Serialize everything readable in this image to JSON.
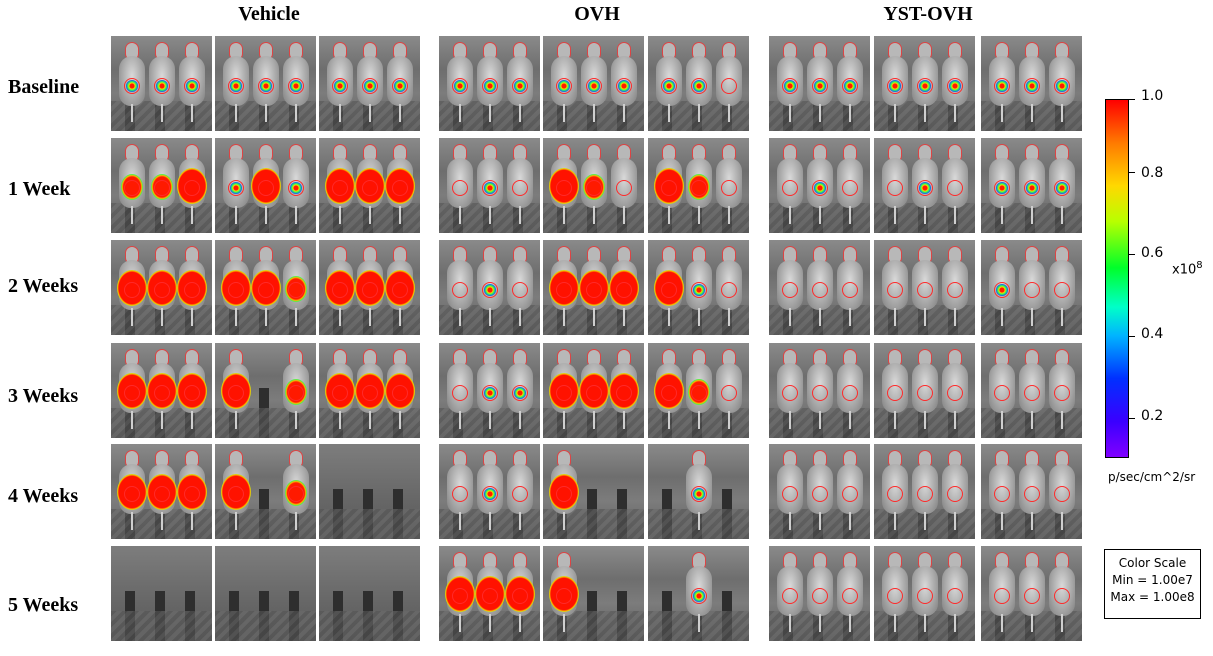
{
  "group_titles": [
    "Vehicle",
    "OVH",
    "YST-OVH"
  ],
  "row_labels": [
    "Baseline",
    "1 Week",
    "2 Weeks",
    "3 Weeks",
    "4 Weeks",
    "5 Weeks"
  ],
  "colorbar": {
    "ticks": [
      "1.0",
      "0.8",
      "0.6",
      "0.4",
      "0.2"
    ],
    "multiplier": "x10",
    "multiplier_exp": "8",
    "unit": "p/sec/cm^2/sr",
    "colors": [
      "#ff0000",
      "#ffd800",
      "#00ff2a",
      "#00b4ff",
      "#0030ff",
      "#8000ff"
    ]
  },
  "color_scale": {
    "title": "Color Scale",
    "min": "Min = 1.00e7",
    "max": "Max = 1.00e8"
  },
  "signal_levels": {
    "vehicle": [
      [
        1,
        1,
        1,
        1,
        1,
        1,
        1,
        1,
        1
      ],
      [
        2,
        2,
        3,
        1,
        3,
        1,
        3,
        3,
        3
      ],
      [
        3,
        3,
        3,
        3,
        3,
        2,
        3,
        3,
        3
      ],
      [
        3,
        3,
        3,
        3,
        0,
        2,
        3,
        3,
        3
      ],
      [
        3,
        3,
        3,
        3,
        0,
        2,
        0,
        0,
        0
      ],
      [
        0,
        0,
        0,
        0,
        0,
        0,
        0,
        0,
        0
      ]
    ],
    "ovh": [
      [
        1,
        1,
        1,
        1,
        1,
        1,
        1,
        1,
        0
      ],
      [
        0,
        1,
        0,
        3,
        2,
        0,
        3,
        2,
        0
      ],
      [
        0,
        1,
        0,
        3,
        3,
        3,
        3,
        1,
        0
      ],
      [
        0,
        1,
        1,
        3,
        3,
        3,
        3,
        2,
        0
      ],
      [
        0,
        1,
        0,
        3,
        0,
        0,
        0,
        1,
        0
      ],
      [
        3,
        3,
        3,
        3,
        0,
        0,
        0,
        1,
        0
      ]
    ],
    "yst": [
      [
        1,
        1,
        1,
        1,
        1,
        1,
        1,
        1,
        1
      ],
      [
        0,
        1,
        0,
        0,
        1,
        0,
        1,
        1,
        1
      ],
      [
        0,
        0,
        0,
        0,
        0,
        0,
        1,
        0,
        0
      ],
      [
        0,
        0,
        0,
        0,
        0,
        0,
        0,
        0,
        0
      ],
      [
        0,
        0,
        0,
        0,
        0,
        0,
        0,
        0,
        0
      ],
      [
        0,
        0,
        0,
        0,
        0,
        0,
        0,
        0,
        0
      ]
    ]
  }
}
